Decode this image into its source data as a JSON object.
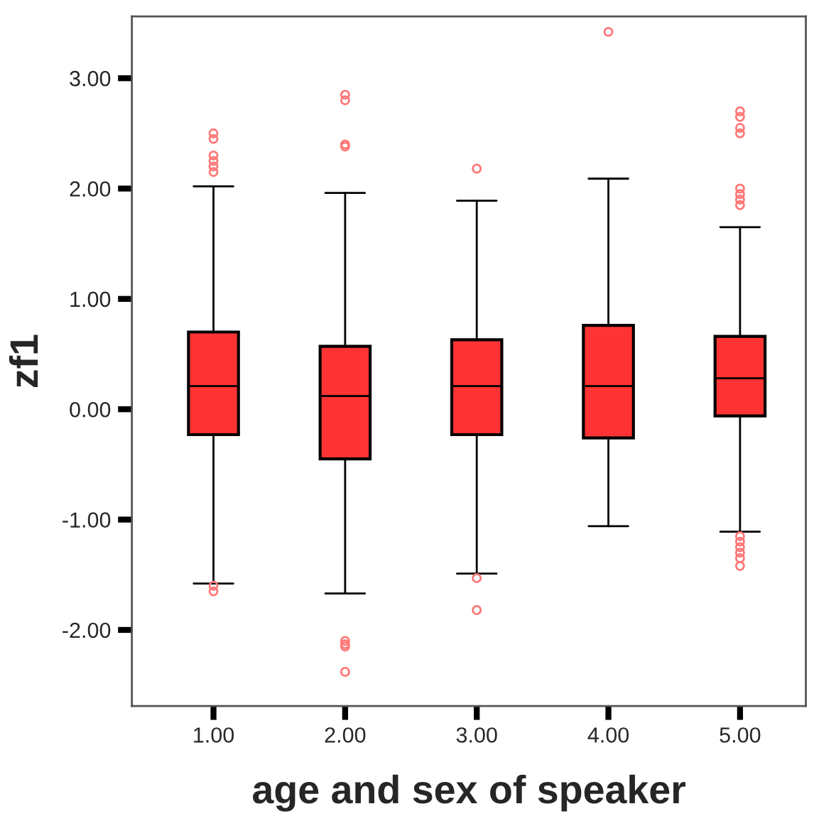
{
  "chart_data": {
    "type": "box",
    "xlabel": "age and sex of speaker",
    "ylabel": "zf1",
    "categories": [
      "1.00",
      "2.00",
      "3.00",
      "4.00",
      "5.00"
    ],
    "color": "#ff3333",
    "boxes": [
      {
        "low": -1.58,
        "q1": -0.23,
        "median": 0.21,
        "q3": 0.7,
        "high": 2.02,
        "outliers": [
          2.5,
          2.45,
          2.3,
          2.25,
          2.2,
          2.15,
          -1.6,
          -1.65
        ]
      },
      {
        "low": -1.67,
        "q1": -0.45,
        "median": 0.12,
        "q3": 0.57,
        "high": 1.96,
        "outliers": [
          2.85,
          2.8,
          2.4,
          2.38,
          -2.1,
          -2.13,
          -2.15,
          -2.38
        ]
      },
      {
        "low": -1.49,
        "q1": -0.23,
        "median": 0.21,
        "q3": 0.63,
        "high": 1.89,
        "outliers": [
          2.18,
          -1.53,
          -1.82
        ]
      },
      {
        "low": -1.06,
        "q1": -0.26,
        "median": 0.21,
        "q3": 0.76,
        "high": 2.09,
        "outliers": [
          3.42
        ]
      },
      {
        "low": -1.11,
        "q1": -0.06,
        "median": 0.28,
        "q3": 0.66,
        "high": 1.65,
        "outliers": [
          2.7,
          2.65,
          2.55,
          2.5,
          2.0,
          1.95,
          1.9,
          1.85,
          -1.15,
          -1.2,
          -1.25,
          -1.3,
          -1.35,
          -1.42
        ]
      }
    ],
    "ylim": [
      -2.69,
      3.56
    ],
    "yticks": [
      {
        "value": -2,
        "label": "-2.00"
      },
      {
        "value": -1,
        "label": "-1.00"
      },
      {
        "value": 0,
        "label": "0.00"
      },
      {
        "value": 1,
        "label": "1.00"
      },
      {
        "value": 2,
        "label": "2.00"
      },
      {
        "value": 3,
        "label": "3.00"
      }
    ],
    "grid": false
  }
}
